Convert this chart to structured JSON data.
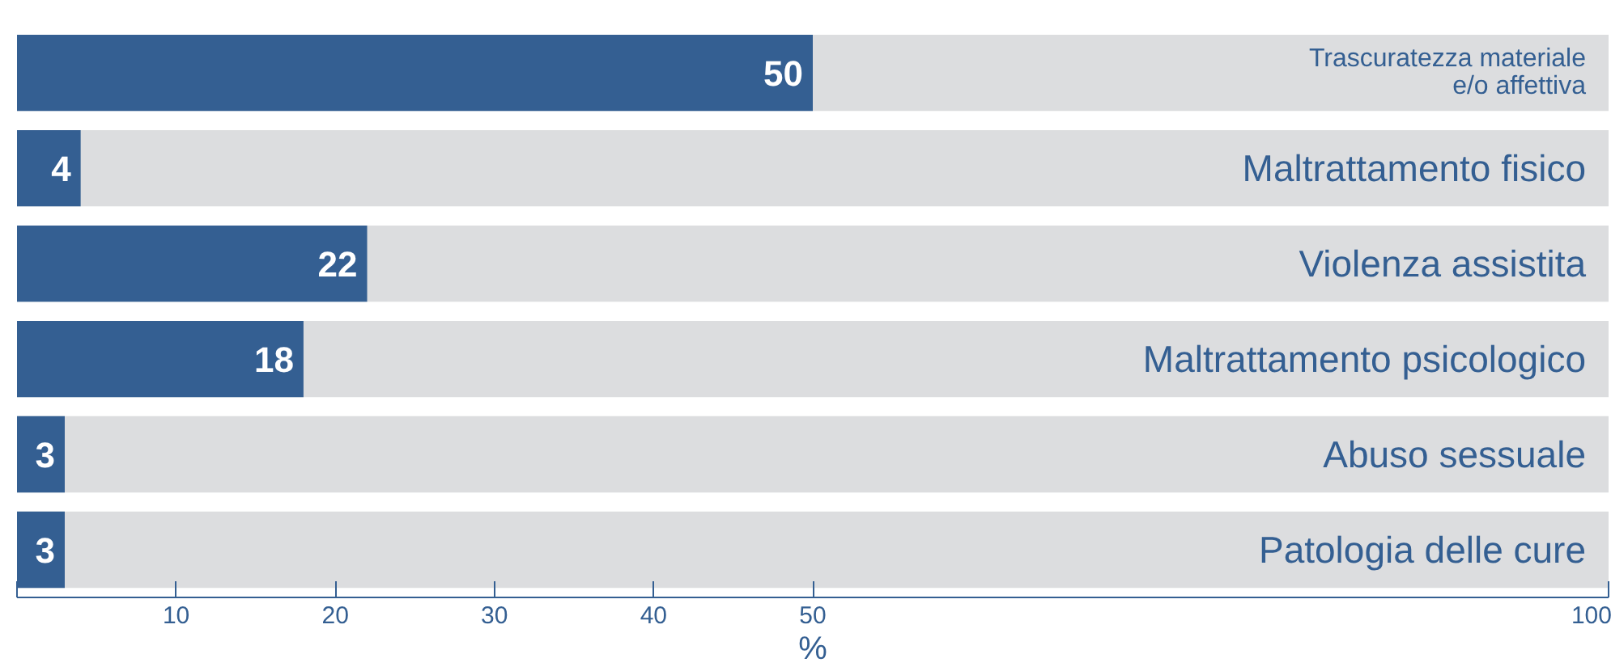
{
  "chart_data": {
    "type": "bar",
    "orientation": "horizontal",
    "categories": [
      "Trascuratezza materiale\ne/o affettiva",
      "Maltrattamento fisico",
      "Violenza assistita",
      "Maltrattamento psicologico",
      "Abuso sessuale",
      "Patologia delle cure"
    ],
    "values": [
      50,
      4,
      22,
      18,
      3,
      3
    ],
    "color": "#345f92",
    "data_labels": true,
    "xlabel": "%",
    "xlim": [
      0,
      100
    ],
    "xticks": [
      {
        "value": 0,
        "label": null
      },
      10,
      20,
      30,
      40,
      50,
      100
    ],
    "grid": false
  }
}
